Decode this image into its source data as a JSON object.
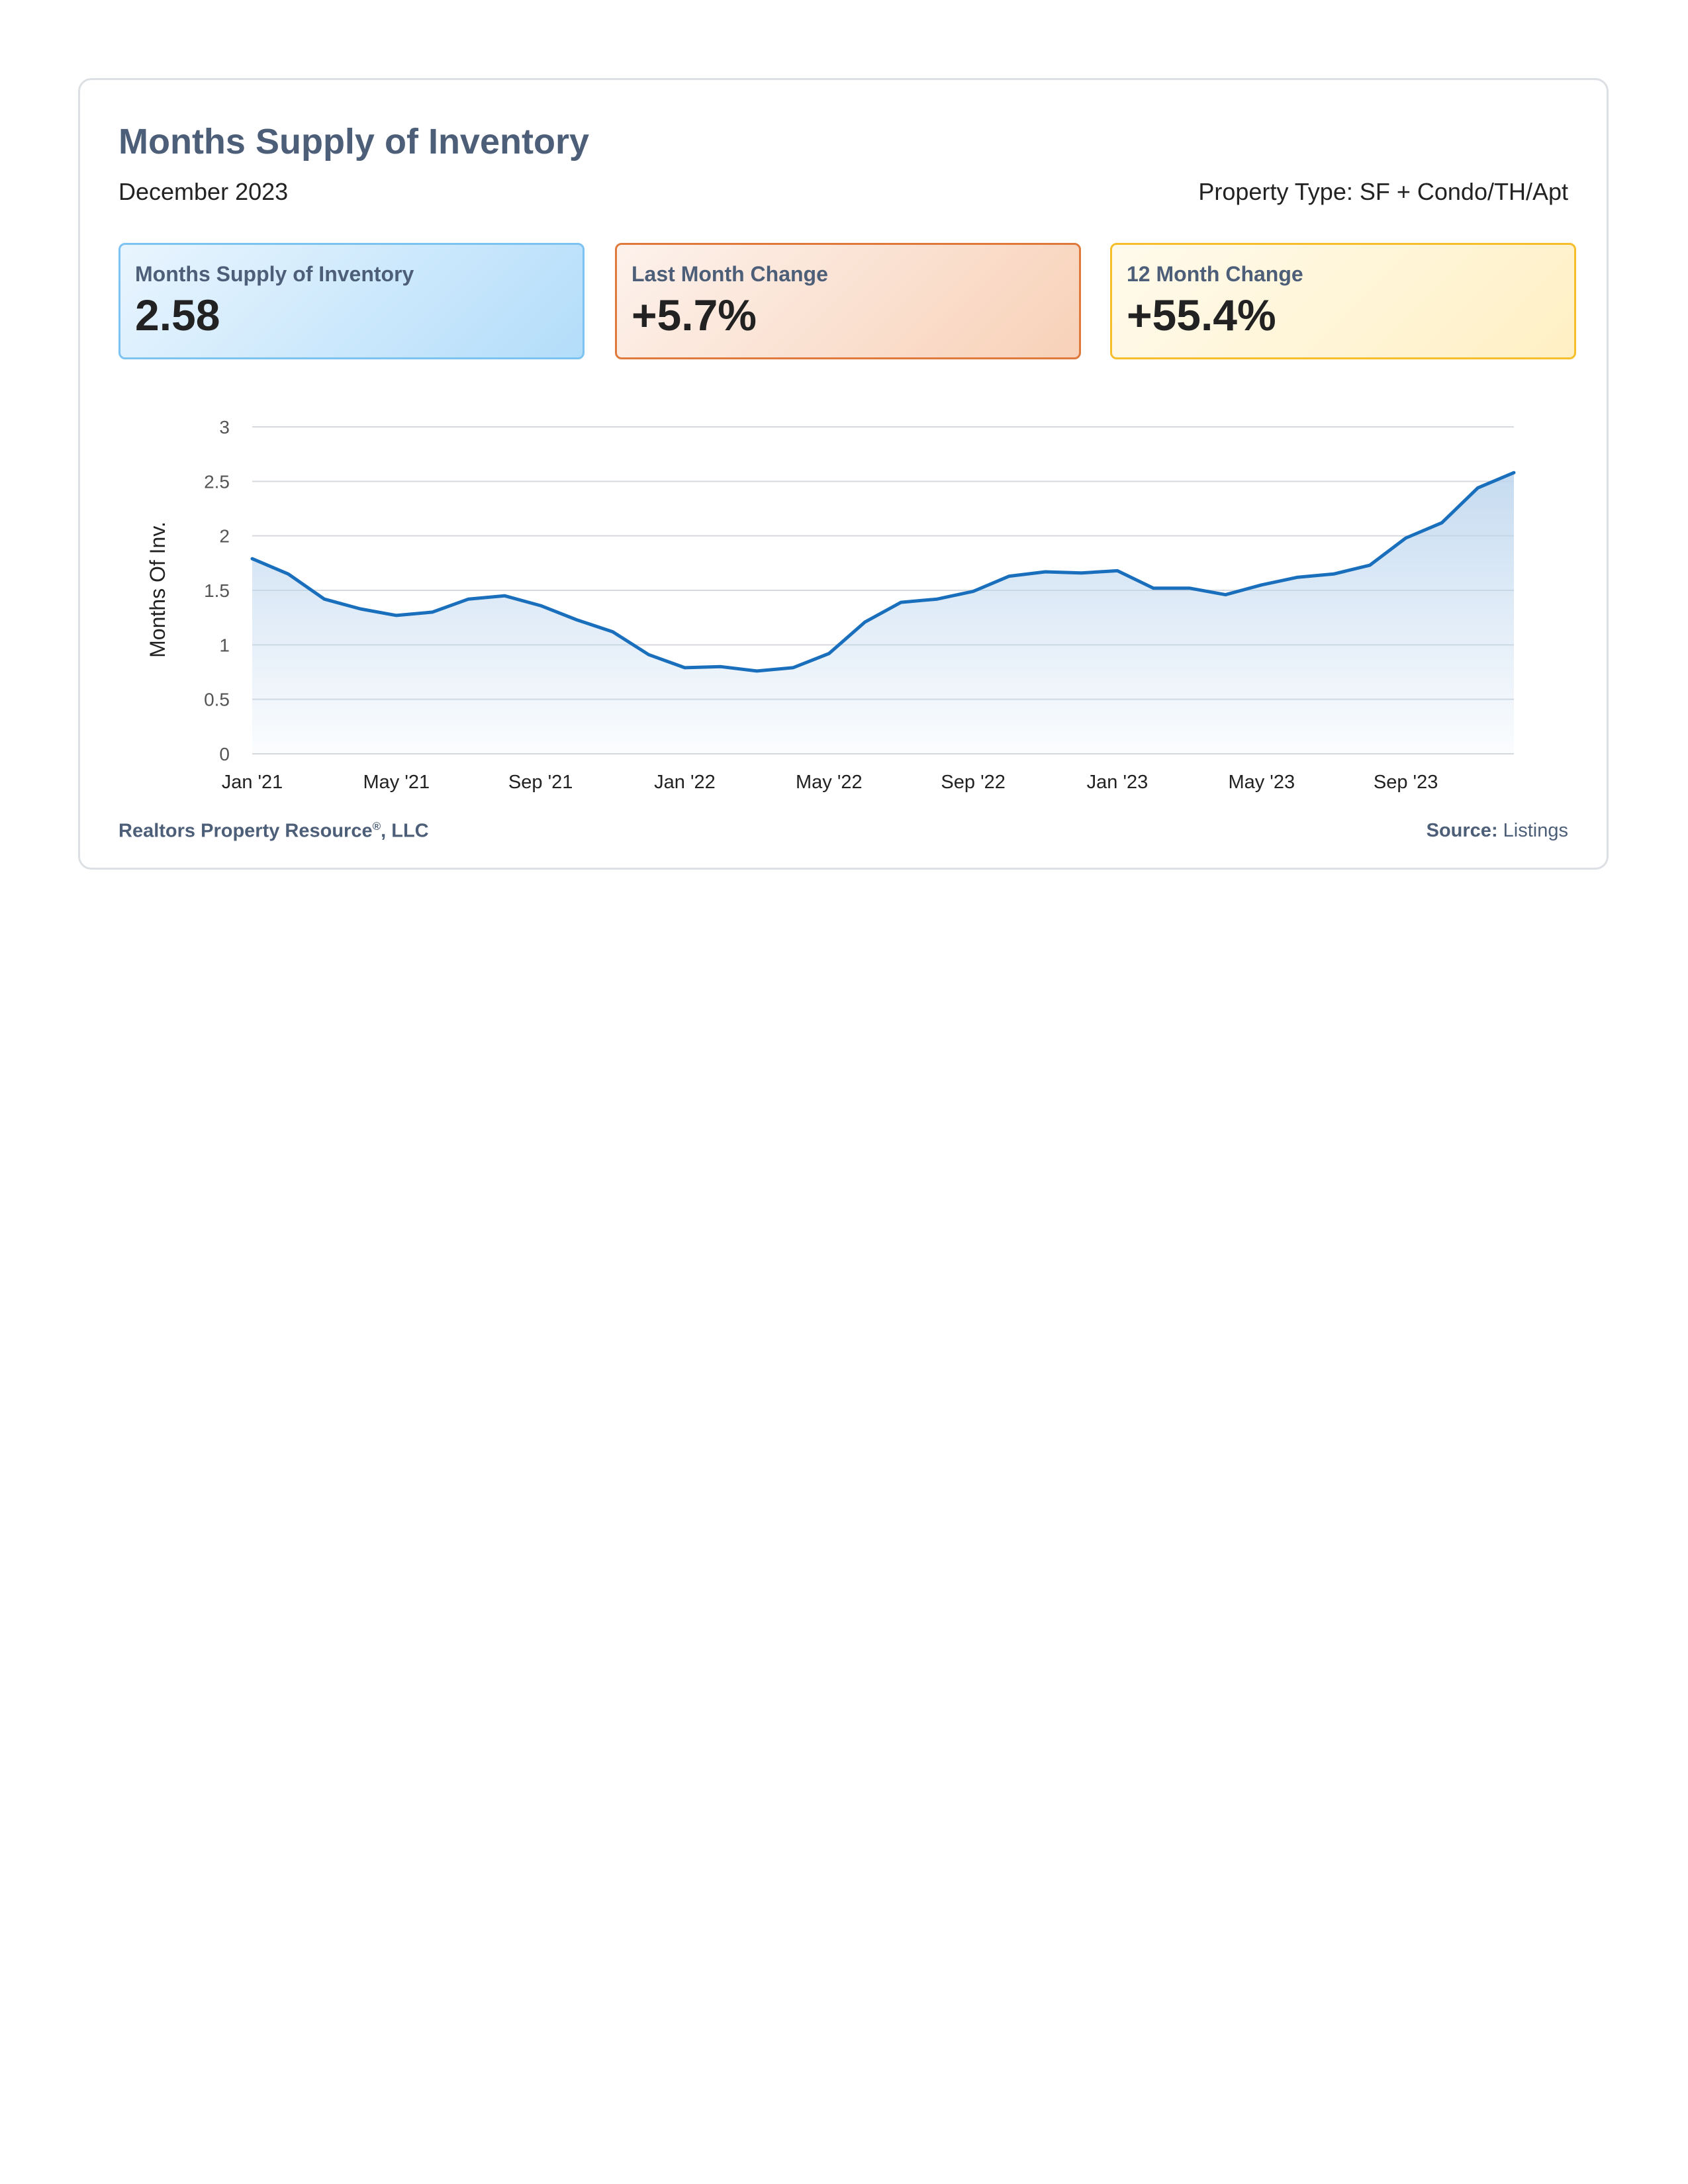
{
  "header": {
    "title": "Months Supply of Inventory",
    "period": "December 2023",
    "property_type": "Property Type: SF + Condo/TH/Apt"
  },
  "stats": [
    {
      "label": "Months Supply of Inventory",
      "value": "2.58",
      "border": "#7cc3f2"
    },
    {
      "label": "Last Month Change",
      "value": "+5.7%",
      "border": "#e07a3c"
    },
    {
      "label": "12 Month Change",
      "value": "+55.4%",
      "border": "#f5be2a"
    }
  ],
  "chart_data": {
    "type": "area",
    "ylabel": "Months Of Inv.",
    "xlabel": "",
    "ylim": [
      0,
      3
    ],
    "yticks": [
      "0",
      "0.5",
      "1",
      "1.5",
      "2",
      "2.5",
      "3"
    ],
    "grid": true,
    "line_color": "#1a6fbd",
    "fill_color": "#c8ddf1",
    "x": [
      "Jan '21",
      "Feb '21",
      "Mar '21",
      "Apr '21",
      "May '21",
      "Jun '21",
      "Jul '21",
      "Aug '21",
      "Sep '21",
      "Oct '21",
      "Nov '21",
      "Dec '21",
      "Jan '22",
      "Feb '22",
      "Mar '22",
      "Apr '22",
      "May '22",
      "Jun '22",
      "Jul '22",
      "Aug '22",
      "Sep '22",
      "Oct '22",
      "Nov '22",
      "Dec '22",
      "Jan '23",
      "Feb '23",
      "Mar '23",
      "Apr '23",
      "May '23",
      "Jun '23",
      "Jul '23",
      "Aug '23",
      "Sep '23",
      "Oct '23",
      "Nov '23",
      "Dec '23"
    ],
    "xtick_labels": [
      {
        "label": "Jan '21",
        "index": 0
      },
      {
        "label": "May '21",
        "index": 4
      },
      {
        "label": "Sep '21",
        "index": 8
      },
      {
        "label": "Jan '22",
        "index": 12
      },
      {
        "label": "May '22",
        "index": 16
      },
      {
        "label": "Sep '22",
        "index": 20
      },
      {
        "label": "Jan '23",
        "index": 24
      },
      {
        "label": "May '23",
        "index": 28
      },
      {
        "label": "Sep '23",
        "index": 32
      }
    ],
    "series": [
      {
        "values": [
          1.79,
          1.65,
          1.42,
          1.33,
          1.27,
          1.3,
          1.42,
          1.45,
          1.36,
          1.23,
          1.12,
          0.91,
          0.79,
          0.8,
          0.76,
          0.79,
          0.92,
          1.21,
          1.39,
          1.42,
          1.49,
          1.63,
          1.67,
          1.66,
          1.68,
          1.52,
          1.52,
          1.46,
          1.55,
          1.62,
          1.65,
          1.73,
          1.98,
          2.12,
          2.44,
          2.58
        ]
      }
    ]
  },
  "footer": {
    "company": "Realtors Property Resource",
    "registered": "®",
    "company_suffix": ", LLC",
    "source_label": "Source:",
    "source_value": "Listings"
  }
}
